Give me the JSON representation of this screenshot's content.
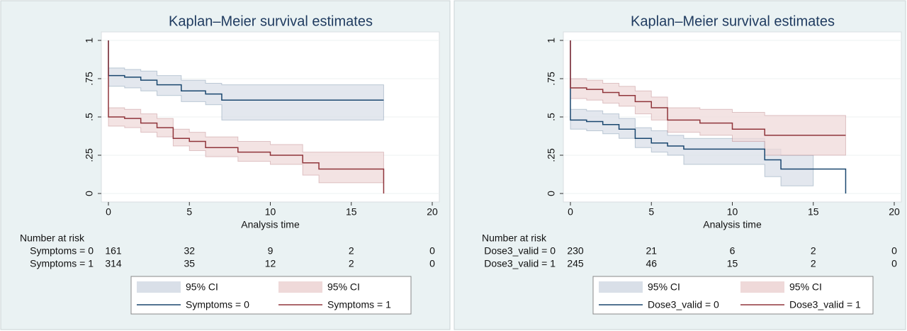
{
  "chart_data": [
    {
      "type": "step",
      "title": "Kaplan–Meier survival estimates",
      "xlabel": "Analysis time",
      "xlim": [
        0,
        20
      ],
      "ylim": [
        0,
        1
      ],
      "xticks": [
        0,
        5,
        10,
        15,
        20
      ],
      "yticks": [
        0,
        {
          "value": 0.25,
          "label": ".25"
        },
        {
          "value": 0.5,
          "label": ".5"
        },
        {
          "value": 0.75,
          "label": ".75"
        },
        1
      ],
      "grid": true,
      "series": [
        {
          "name": "Symptoms = 0",
          "color": "#1a476f",
          "ci_name": "95% CI",
          "ci_color": "#d9dfe8",
          "x": [
            0,
            0,
            1,
            2,
            3,
            4.5,
            6,
            7,
            17
          ],
          "values": [
            1,
            0.77,
            0.76,
            0.74,
            0.71,
            0.67,
            0.65,
            0.61,
            0.61
          ],
          "ci_x": [
            0,
            1,
            2,
            3,
            4.5,
            6,
            7,
            17
          ],
          "ci_upper": [
            0.82,
            0.81,
            0.8,
            0.77,
            0.74,
            0.72,
            0.71,
            0.71
          ],
          "ci_lower": [
            0.7,
            0.69,
            0.67,
            0.64,
            0.6,
            0.58,
            0.48,
            0.48
          ]
        },
        {
          "name": "Symptoms = 1",
          "color": "#90353b",
          "ci_name": "95% CI",
          "ci_color": "#efd9d9",
          "x": [
            0,
            0,
            1,
            2,
            3,
            4,
            5,
            6,
            8,
            10,
            12,
            13,
            17
          ],
          "values": [
            1,
            0.5,
            0.49,
            0.46,
            0.43,
            0.36,
            0.34,
            0.3,
            0.27,
            0.25,
            0.2,
            0.16,
            0
          ],
          "ci_x": [
            0,
            1,
            2,
            3,
            4,
            5,
            6,
            8,
            10,
            12,
            13,
            17
          ],
          "ci_upper": [
            0.56,
            0.55,
            0.52,
            0.49,
            0.42,
            0.4,
            0.37,
            0.34,
            0.32,
            0.27,
            0.27,
            0.27
          ],
          "ci_lower": [
            0.44,
            0.43,
            0.4,
            0.37,
            0.31,
            0.28,
            0.24,
            0.21,
            0.19,
            0.12,
            0.07,
            0.07
          ]
        }
      ],
      "risk_table": {
        "title": "Number at risk",
        "rows": [
          {
            "label": "Symptoms = 0",
            "values": [
              161,
              32,
              9,
              2,
              0
            ]
          },
          {
            "label": "Symptoms = 1",
            "values": [
              314,
              35,
              12,
              2,
              0
            ]
          }
        ]
      }
    },
    {
      "type": "step",
      "title": "Kaplan–Meier survival estimates",
      "xlabel": "Analysis time",
      "xlim": [
        0,
        20
      ],
      "ylim": [
        0,
        1
      ],
      "xticks": [
        0,
        5,
        10,
        15,
        20
      ],
      "yticks": [
        0,
        {
          "value": 0.25,
          "label": ".25"
        },
        {
          "value": 0.5,
          "label": ".5"
        },
        {
          "value": 0.75,
          "label": ".75"
        },
        1
      ],
      "grid": true,
      "series": [
        {
          "name": "Dose3_valid = 0",
          "color": "#1a476f",
          "ci_name": "95% CI",
          "ci_color": "#d9dfe8",
          "x": [
            0,
            0,
            1,
            2,
            3,
            4,
            5,
            6,
            7,
            12,
            13,
            17
          ],
          "values": [
            1,
            0.48,
            0.47,
            0.45,
            0.42,
            0.36,
            0.33,
            0.31,
            0.29,
            0.22,
            0.16,
            0
          ],
          "ci_x": [
            0,
            1,
            2,
            3,
            4,
            5,
            6,
            7,
            12,
            13,
            15
          ],
          "ci_upper": [
            0.55,
            0.54,
            0.52,
            0.49,
            0.43,
            0.41,
            0.38,
            0.36,
            0.29,
            0.25,
            0.25
          ],
          "ci_lower": [
            0.42,
            0.41,
            0.39,
            0.36,
            0.3,
            0.27,
            0.25,
            0.19,
            0.11,
            0.05,
            0.05
          ]
        },
        {
          "name": "Dose3_valid = 1",
          "color": "#90353b",
          "ci_name": "95% CI",
          "ci_color": "#efd9d9",
          "x": [
            0,
            0,
            1,
            2,
            3,
            4,
            5,
            6,
            8,
            10,
            12,
            17
          ],
          "values": [
            1,
            0.69,
            0.68,
            0.66,
            0.64,
            0.6,
            0.56,
            0.48,
            0.46,
            0.42,
            0.38,
            0.38
          ],
          "ci_x": [
            0,
            1,
            2,
            3,
            4,
            5,
            6,
            8,
            10,
            12,
            17
          ],
          "ci_upper": [
            0.75,
            0.74,
            0.72,
            0.7,
            0.67,
            0.63,
            0.56,
            0.55,
            0.53,
            0.51,
            0.51
          ],
          "ci_lower": [
            0.62,
            0.61,
            0.59,
            0.57,
            0.52,
            0.48,
            0.4,
            0.38,
            0.34,
            0.25,
            0.25
          ]
        }
      ],
      "risk_table": {
        "title": "Number at risk",
        "rows": [
          {
            "label": "Dose3_valid = 0",
            "values": [
              230,
              21,
              6,
              2,
              0
            ]
          },
          {
            "label": "Dose3_valid = 1",
            "values": [
              245,
              46,
              15,
              2,
              0
            ]
          }
        ]
      }
    }
  ]
}
